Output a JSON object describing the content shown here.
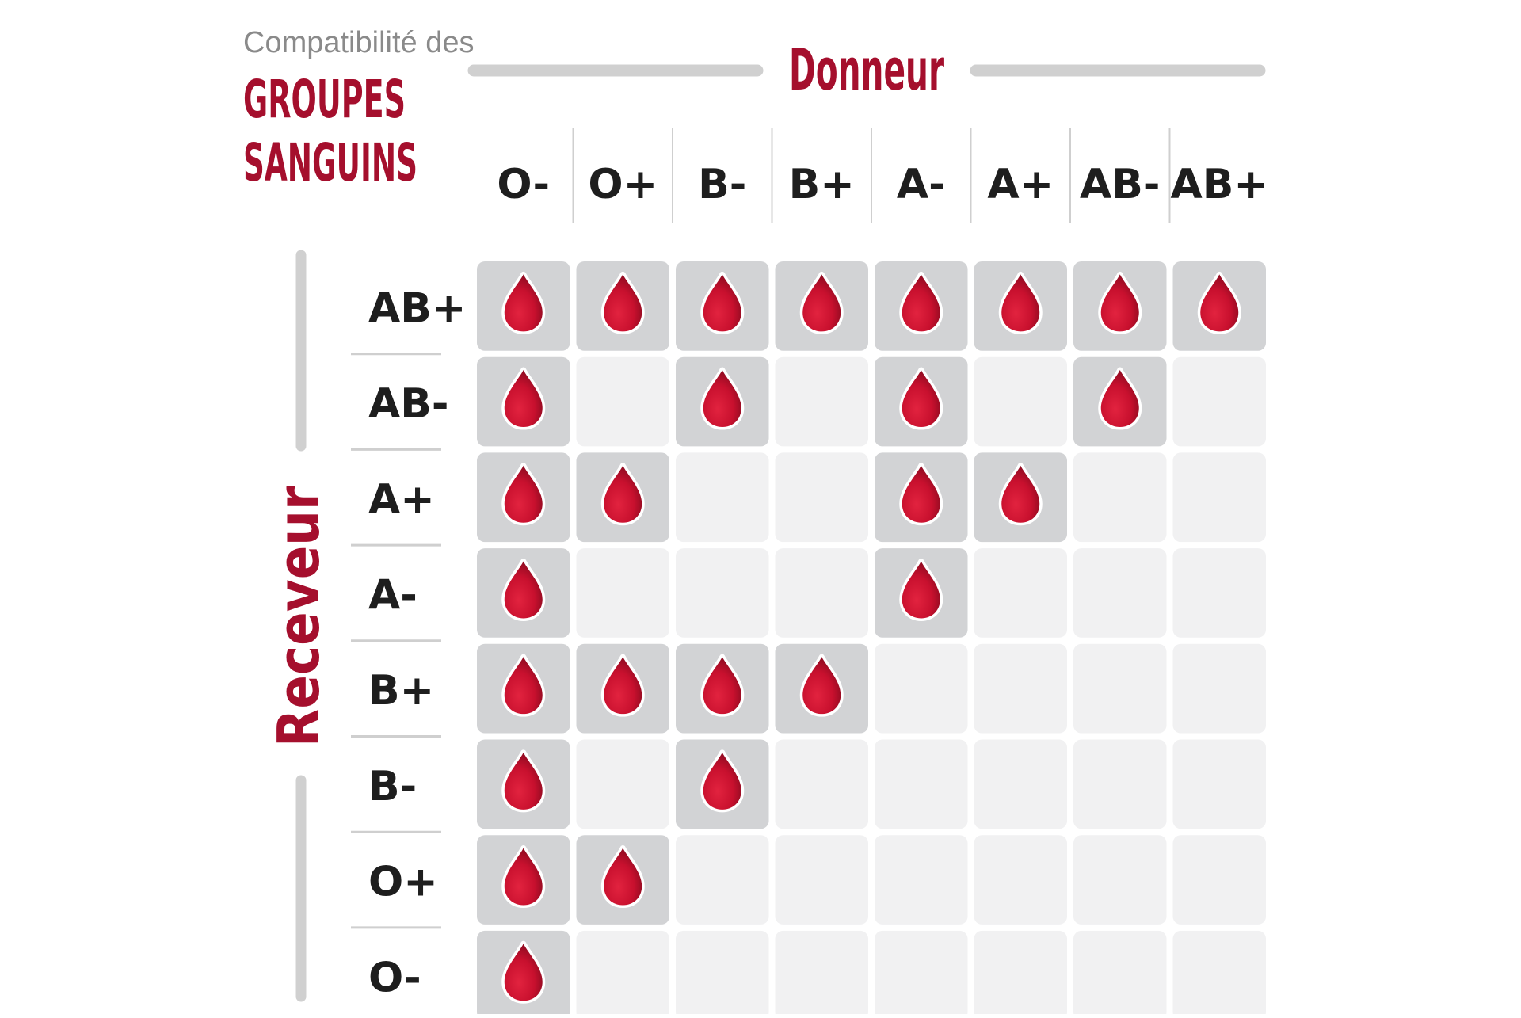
{
  "title": {
    "subtitle": "Compatibilité des",
    "line1": "GROUPES",
    "line2": "SANGUINS"
  },
  "donor_label": "Donneur",
  "recipient_label": "Receveur",
  "donors": [
    "O-",
    "O+",
    "B-",
    "B+",
    "A-",
    "A+",
    "AB-",
    "AB+"
  ],
  "recipients": [
    "AB+",
    "AB-",
    "A+",
    "A-",
    "B+",
    "B-",
    "O+",
    "O-"
  ],
  "compatibility": [
    [
      1,
      1,
      1,
      1,
      1,
      1,
      1,
      1
    ],
    [
      1,
      0,
      1,
      0,
      1,
      0,
      1,
      0
    ],
    [
      1,
      1,
      0,
      0,
      1,
      1,
      0,
      0
    ],
    [
      1,
      0,
      0,
      0,
      1,
      0,
      0,
      0
    ],
    [
      1,
      1,
      1,
      1,
      0,
      0,
      0,
      0
    ],
    [
      1,
      0,
      1,
      0,
      0,
      0,
      0,
      0
    ],
    [
      1,
      1,
      0,
      0,
      0,
      0,
      0,
      0
    ],
    [
      1,
      0,
      0,
      0,
      0,
      0,
      0,
      0
    ]
  ],
  "colors": {
    "brand_red": "#a50f2d",
    "drop_red": "#c8102e",
    "compatible_cell": "#d2d3d5",
    "incompatible_cell": "#f1f1f2",
    "divider": "#cfcfcf",
    "label_text": "#1e1e1e",
    "subtitle_text": "#8a8a8a"
  },
  "icons": {
    "compatible_marker": "blood-drop-icon"
  }
}
